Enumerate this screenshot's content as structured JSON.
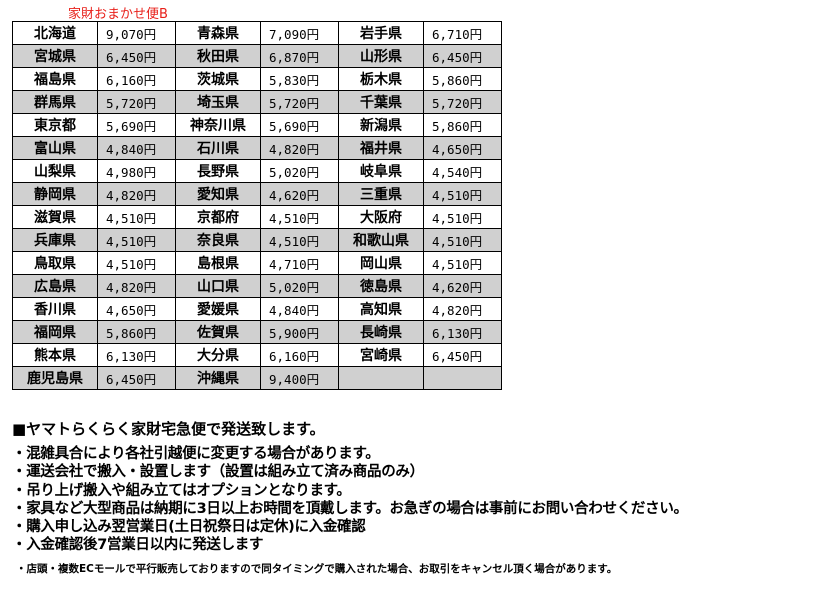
{
  "title": "家財おまかせ便B",
  "rows": [
    [
      [
        "北海道",
        "9,070円"
      ],
      [
        "青森県",
        "7,090円"
      ],
      [
        "岩手県",
        "6,710円"
      ]
    ],
    [
      [
        "宮城県",
        "6,450円"
      ],
      [
        "秋田県",
        "6,870円"
      ],
      [
        "山形県",
        "6,450円"
      ]
    ],
    [
      [
        "福島県",
        "6,160円"
      ],
      [
        "茨城県",
        "5,830円"
      ],
      [
        "栃木県",
        "5,860円"
      ]
    ],
    [
      [
        "群馬県",
        "5,720円"
      ],
      [
        "埼玉県",
        "5,720円"
      ],
      [
        "千葉県",
        "5,720円"
      ]
    ],
    [
      [
        "東京都",
        "5,690円"
      ],
      [
        "神奈川県",
        "5,690円"
      ],
      [
        "新潟県",
        "5,860円"
      ]
    ],
    [
      [
        "富山県",
        "4,840円"
      ],
      [
        "石川県",
        "4,820円"
      ],
      [
        "福井県",
        "4,650円"
      ]
    ],
    [
      [
        "山梨県",
        "4,980円"
      ],
      [
        "長野県",
        "5,020円"
      ],
      [
        "岐阜県",
        "4,540円"
      ]
    ],
    [
      [
        "静岡県",
        "4,820円"
      ],
      [
        "愛知県",
        "4,620円"
      ],
      [
        "三重県",
        "4,510円"
      ]
    ],
    [
      [
        "滋賀県",
        "4,510円"
      ],
      [
        "京都府",
        "4,510円"
      ],
      [
        "大阪府",
        "4,510円"
      ]
    ],
    [
      [
        "兵庫県",
        "4,510円"
      ],
      [
        "奈良県",
        "4,510円"
      ],
      [
        "和歌山県",
        "4,510円"
      ]
    ],
    [
      [
        "鳥取県",
        "4,510円"
      ],
      [
        "島根県",
        "4,710円"
      ],
      [
        "岡山県",
        "4,510円"
      ]
    ],
    [
      [
        "広島県",
        "4,820円"
      ],
      [
        "山口県",
        "5,020円"
      ],
      [
        "徳島県",
        "4,620円"
      ]
    ],
    [
      [
        "香川県",
        "4,650円"
      ],
      [
        "愛媛県",
        "4,840円"
      ],
      [
        "高知県",
        "4,820円"
      ]
    ],
    [
      [
        "福岡県",
        "5,860円"
      ],
      [
        "佐賀県",
        "5,900円"
      ],
      [
        "長崎県",
        "6,130円"
      ]
    ],
    [
      [
        "熊本県",
        "6,130円"
      ],
      [
        "大分県",
        "6,160円"
      ],
      [
        "宮崎県",
        "6,450円"
      ]
    ],
    [
      [
        "鹿児島県",
        "6,450円"
      ],
      [
        "沖縄県",
        "9,400円"
      ],
      [
        "",
        ""
      ]
    ]
  ],
  "notes": {
    "heading": "■ヤマトらくらく家財宅急便で発送致します。",
    "lines": [
      "・混雑具合により各社引越便に変更する場合があります。",
      "・運送会社で搬入・設置します（設置は組み立て済み商品のみ）",
      "・吊り上げ搬入や組み立てはオプションとなります。",
      "・家具など大型商品は納期に3日以上お時間を頂戴します。お急ぎの場合は事前にお問い合わせください。",
      "・購入申し込み翌営業日(土日祝祭日は定休)に入金確認",
      "・入金確認後7営業日以内に発送します"
    ],
    "small": "・店頭・複数ECモールで平行販売しておりますので同タイミングで購入された場合、お取引をキャンセル頂く場合があります。"
  },
  "colors": {
    "title": "#e8201a",
    "stripe": "#d0d0d0"
  }
}
